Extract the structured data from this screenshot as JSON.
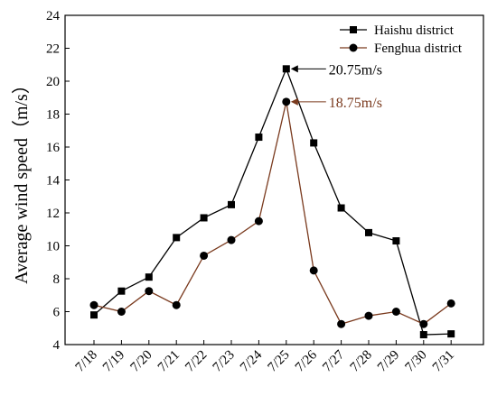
{
  "chart_data": {
    "type": "line",
    "title": "",
    "xlabel": "",
    "ylabel": "Average wind speed（m/s）",
    "categories": [
      "7/18",
      "7/19",
      "7/20",
      "7/21",
      "7/22",
      "7/23",
      "7/24",
      "7/25",
      "7/26",
      "7/27",
      "7/28",
      "7/29",
      "7/30",
      "7/31"
    ],
    "ylim": [
      4,
      24
    ],
    "yticks": [
      4,
      6,
      8,
      10,
      12,
      14,
      16,
      18,
      20,
      22,
      24
    ],
    "grid": false,
    "legend_position": "top-right",
    "series": [
      {
        "name": "Haishu district",
        "marker": "square",
        "color": "#000000",
        "values": [
          5.8,
          7.25,
          8.1,
          10.5,
          11.7,
          12.5,
          16.6,
          20.75,
          16.25,
          12.3,
          10.8,
          10.3,
          4.6,
          4.65
        ]
      },
      {
        "name": "Fenghua district",
        "marker": "circle",
        "color": "#7a3a1e",
        "values": [
          6.4,
          6.0,
          7.25,
          6.4,
          9.4,
          10.35,
          11.5,
          18.75,
          8.5,
          5.25,
          5.75,
          6.0,
          5.25,
          6.5
        ]
      }
    ],
    "annotations": [
      {
        "text": "20.75m/s",
        "series": 0,
        "index": 7,
        "color": "#000000"
      },
      {
        "text": "18.75m/s",
        "series": 1,
        "index": 7,
        "color": "#7a3a1e"
      }
    ]
  }
}
